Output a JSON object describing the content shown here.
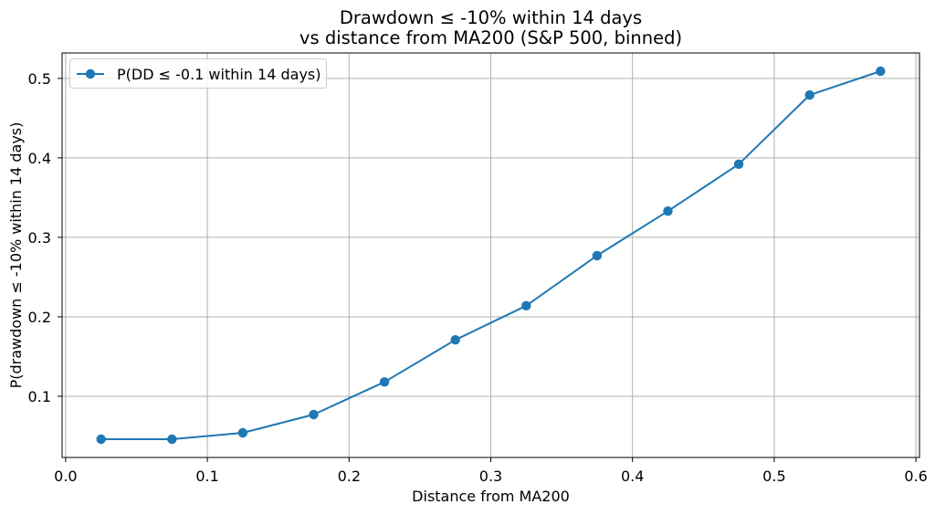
{
  "chart_data": {
    "type": "line",
    "title": "Drawdown ≤ -10% within 14 days\nvs distance from MA200 (S&P 500, binned)",
    "title_lines": [
      "Drawdown ≤ -10% within 14 days",
      "vs distance from MA200 (S&P 500, binned)"
    ],
    "xlabel": "Distance from MA200",
    "ylabel": "P(drawdown ≤ -10% within 14 days)",
    "legend": {
      "position": "upper left",
      "entries": [
        "P(DD ≤ -0.1 within 14 days)"
      ]
    },
    "x": [
      0.025,
      0.075,
      0.125,
      0.175,
      0.225,
      0.275,
      0.325,
      0.375,
      0.425,
      0.475,
      0.525,
      0.575
    ],
    "series": [
      {
        "name": "P(DD ≤ -0.1 within 14 days)",
        "values": [
          0.046,
          0.046,
          0.054,
          0.077,
          0.118,
          0.171,
          0.214,
          0.277,
          0.333,
          0.392,
          0.479,
          0.509
        ],
        "color": "#1f77b4",
        "marker": "circle",
        "line_width": 2
      }
    ],
    "xticks": [
      0.0,
      0.1,
      0.2,
      0.3,
      0.4,
      0.5,
      0.6
    ],
    "yticks": [
      0.1,
      0.2,
      0.3,
      0.4,
      0.5
    ],
    "xlim": [
      -0.0025,
      0.6025
    ],
    "ylim": [
      0.023,
      0.532
    ],
    "grid": true,
    "grid_on": true,
    "grid_color": "#b0b0b0",
    "axis_color": "#000000",
    "background_color": "#ffffff"
  }
}
